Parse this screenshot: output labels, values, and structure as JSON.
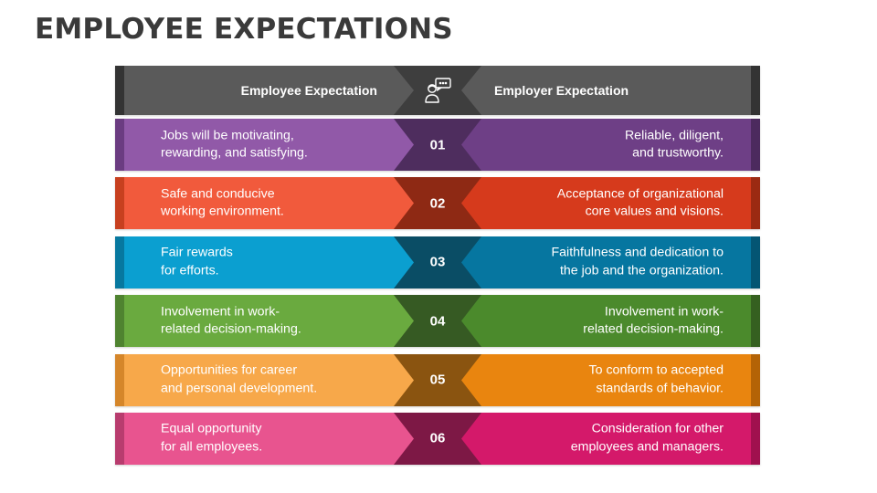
{
  "title": "EMPLOYEE EXPECTATIONS",
  "header": {
    "left_label": "Employee Expectation",
    "right_label": "Employer Expectation",
    "icon": "person-chat-icon",
    "colors": {
      "base": "#5a5a5a",
      "edge": "#333333",
      "diamond": "#3e3e3e"
    }
  },
  "rows": [
    {
      "number": "01",
      "left_line1": "Jobs will be motivating,",
      "left_line2": "rewarding, and satisfying.",
      "right_line1": "Reliable, diligent,",
      "right_line2": "and trustworthy.",
      "colors": {
        "left": "#9159a8",
        "right": "#6e3f86",
        "left_edge": "#6b3c81",
        "right_edge": "#4c2a5e",
        "diamond": "#4e2d5e"
      }
    },
    {
      "number": "02",
      "left_line1": "Safe and conducive",
      "left_line2": "working environment.",
      "right_line1": "Acceptance of organizational",
      "right_line2": "core values and visions.",
      "colors": {
        "left": "#f15a3c",
        "right": "#d63a1c",
        "left_edge": "#c7401f",
        "right_edge": "#9b2a12",
        "diamond": "#8e2914"
      }
    },
    {
      "number": "03",
      "left_line1": "Fair rewards",
      "left_line2": "for efforts.",
      "right_line1": "Faithfulness and dedication to",
      "right_line2": "the job and the organization.",
      "colors": {
        "left": "#0b9fd0",
        "right": "#0676a0",
        "left_edge": "#07789f",
        "right_edge": "#045573",
        "diamond": "#0a4d65"
      }
    },
    {
      "number": "04",
      "left_line1": "Involvement in work-",
      "left_line2": "related decision-making.",
      "right_line1": "Involvement in work-",
      "right_line2": "related decision-making.",
      "colors": {
        "left": "#6aaa3f",
        "right": "#4b8a2c",
        "left_edge": "#4f8330",
        "right_edge": "#356020",
        "diamond": "#365a23"
      }
    },
    {
      "number": "05",
      "left_line1": "Opportunities for career",
      "left_line2": "and personal development.",
      "right_line1": "To conform to accepted",
      "right_line2": "standards of behavior.",
      "colors": {
        "left": "#f7a84a",
        "right": "#e9850f",
        "left_edge": "#d5862a",
        "right_edge": "#b46306",
        "diamond": "#8a5410"
      }
    },
    {
      "number": "06",
      "left_line1": "Equal opportunity",
      "left_line2": "for all employees.",
      "right_line1": "Consideration for other",
      "right_line2": "employees and managers.",
      "colors": {
        "left": "#e8548f",
        "right": "#d4196a",
        "left_edge": "#b83c6e",
        "right_edge": "#a0104e",
        "diamond": "#7d1845"
      }
    }
  ]
}
